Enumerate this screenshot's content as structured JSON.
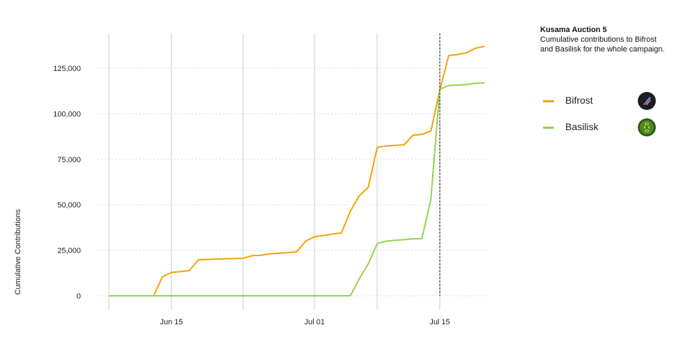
{
  "chart_data": {
    "type": "line",
    "ylabel": "Cumulative Contributions",
    "xlabel": "",
    "ylim": [
      0,
      140000
    ],
    "yticks": [
      0,
      25000,
      50000,
      75000,
      100000,
      125000
    ],
    "ytick_labels": [
      "0",
      "25,000",
      "50,000",
      "75,000",
      "100,000",
      "125,000"
    ],
    "x_range": [
      "2021-06-07",
      "2021-07-18"
    ],
    "xticks": [
      "2021-06-15",
      "2021-07-01",
      "2021-07-15"
    ],
    "xtick_labels": [
      "Jun 15",
      "Jul 01",
      "Jul 15"
    ],
    "marker_line": "2021-07-15",
    "grid": true,
    "legend_position": "right",
    "series": [
      {
        "name": "Bifrost",
        "color": "#f5a000",
        "points": [
          [
            "2021-06-08",
            0
          ],
          [
            "2021-06-13",
            0
          ],
          [
            "2021-06-14",
            10500
          ],
          [
            "2021-06-15",
            12800
          ],
          [
            "2021-06-17",
            13800
          ],
          [
            "2021-06-18",
            19800
          ],
          [
            "2021-06-20",
            20200
          ],
          [
            "2021-06-23",
            20600
          ],
          [
            "2021-06-24",
            22000
          ],
          [
            "2021-06-25",
            22300
          ],
          [
            "2021-06-26",
            23000
          ],
          [
            "2021-06-27",
            23300
          ],
          [
            "2021-06-28",
            23700
          ],
          [
            "2021-06-29",
            24200
          ],
          [
            "2021-06-30",
            30000
          ],
          [
            "2021-07-01",
            32500
          ],
          [
            "2021-07-02",
            33100
          ],
          [
            "2021-07-03",
            33900
          ],
          [
            "2021-07-04",
            34500
          ],
          [
            "2021-07-05",
            46500
          ],
          [
            "2021-07-06",
            55000
          ],
          [
            "2021-07-07",
            59500
          ],
          [
            "2021-07-08",
            81500
          ],
          [
            "2021-07-09",
            82300
          ],
          [
            "2021-07-10",
            82700
          ],
          [
            "2021-07-11",
            82900
          ],
          [
            "2021-07-12",
            88200
          ],
          [
            "2021-07-13",
            88700
          ],
          [
            "2021-07-14",
            90500
          ],
          [
            "2021-07-15",
            113000
          ],
          [
            "2021-07-16",
            132000
          ],
          [
            "2021-07-17",
            132500
          ],
          [
            "2021-07-18",
            133500
          ],
          [
            "2021-07-19",
            136000
          ],
          [
            "2021-07-20",
            137000
          ]
        ]
      },
      {
        "name": "Basilisk",
        "color": "#8fd548",
        "points": [
          [
            "2021-06-08",
            0
          ],
          [
            "2021-07-04",
            0
          ],
          [
            "2021-07-05",
            0
          ],
          [
            "2021-07-06",
            9500
          ],
          [
            "2021-07-07",
            17500
          ],
          [
            "2021-07-08",
            28800
          ],
          [
            "2021-07-09",
            30000
          ],
          [
            "2021-07-10",
            30500
          ],
          [
            "2021-07-11",
            30800
          ],
          [
            "2021-07-12",
            31300
          ],
          [
            "2021-07-13",
            31400
          ],
          [
            "2021-07-14",
            53000
          ],
          [
            "2021-07-15",
            113500
          ],
          [
            "2021-07-16",
            115500
          ],
          [
            "2021-07-17",
            115800
          ],
          [
            "2021-07-18",
            116000
          ],
          [
            "2021-07-19",
            116800
          ],
          [
            "2021-07-20",
            116900
          ]
        ]
      }
    ]
  },
  "panel": {
    "title": "Kusama Auction 5",
    "subtitle": "Cumulative contributions to Bifrost and Basilisk for the whole campaign."
  },
  "legend": [
    {
      "name": "Bifrost",
      "color": "#f5a000",
      "icon": "bifrost-logo-icon"
    },
    {
      "name": "Basilisk",
      "color": "#8fd548",
      "icon": "basilisk-logo-icon"
    }
  ]
}
